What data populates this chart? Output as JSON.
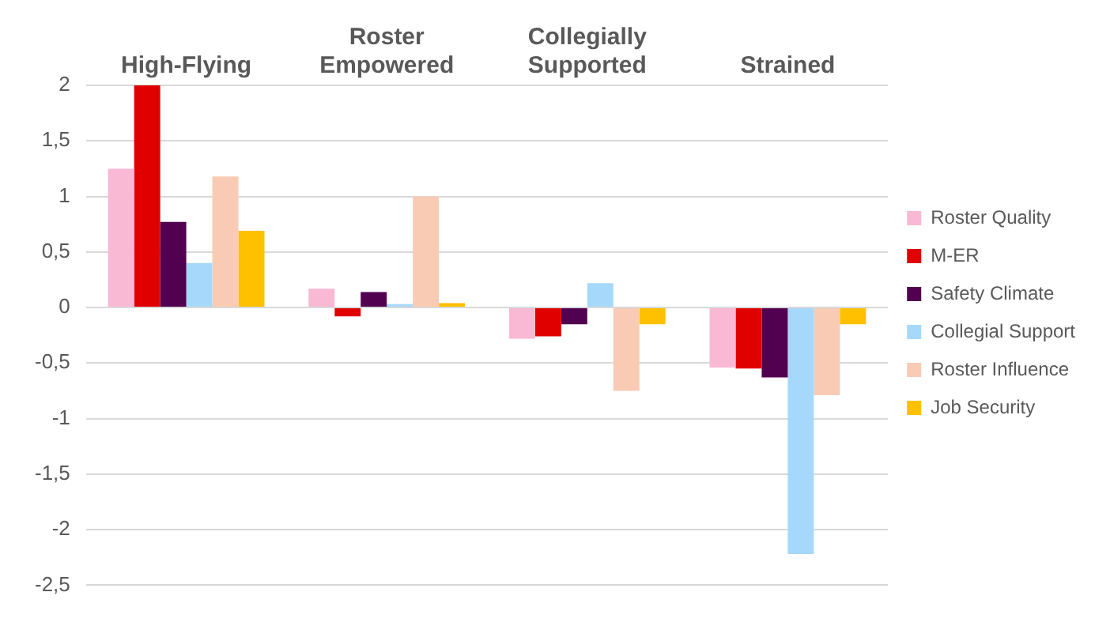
{
  "chart_data": {
    "type": "bar",
    "categories": [
      "High-Flying",
      "Roster Empowered",
      "Collegially Supported",
      "Strained"
    ],
    "series": [
      {
        "name": "Roster Quality",
        "color": "#f9b8d4",
        "values": [
          1.25,
          0.17,
          -0.28,
          -0.54
        ]
      },
      {
        "name": "M-ER",
        "color": "#e00000",
        "values": [
          2.0,
          -0.08,
          -0.26,
          -0.55
        ]
      },
      {
        "name": "Safety Climate",
        "color": "#520050",
        "values": [
          0.77,
          0.14,
          -0.15,
          -0.63
        ]
      },
      {
        "name": "Collegial Support",
        "color": "#a6d8fb",
        "values": [
          0.4,
          0.03,
          0.22,
          -2.22
        ]
      },
      {
        "name": "Roster Influence",
        "color": "#f9cbb5",
        "values": [
          1.18,
          1.0,
          -0.75,
          -0.79
        ]
      },
      {
        "name": "Job Security",
        "color": "#ffc000",
        "values": [
          0.69,
          0.04,
          -0.15,
          -0.15
        ]
      }
    ],
    "ylim": [
      -2.5,
      2
    ],
    "yticks": [
      {
        "value": -2.5,
        "label": "-2,5"
      },
      {
        "value": -2,
        "label": "-2"
      },
      {
        "value": -1.5,
        "label": "-1,5"
      },
      {
        "value": -1,
        "label": "-1"
      },
      {
        "value": -0.5,
        "label": "-0,5"
      },
      {
        "value": 0,
        "label": "0"
      },
      {
        "value": 0.5,
        "label": "0,5"
      },
      {
        "value": 1,
        "label": "1"
      },
      {
        "value": 1.5,
        "label": "1,5"
      },
      {
        "value": 2,
        "label": "2"
      }
    ],
    "grid": "y",
    "legend": "right"
  }
}
